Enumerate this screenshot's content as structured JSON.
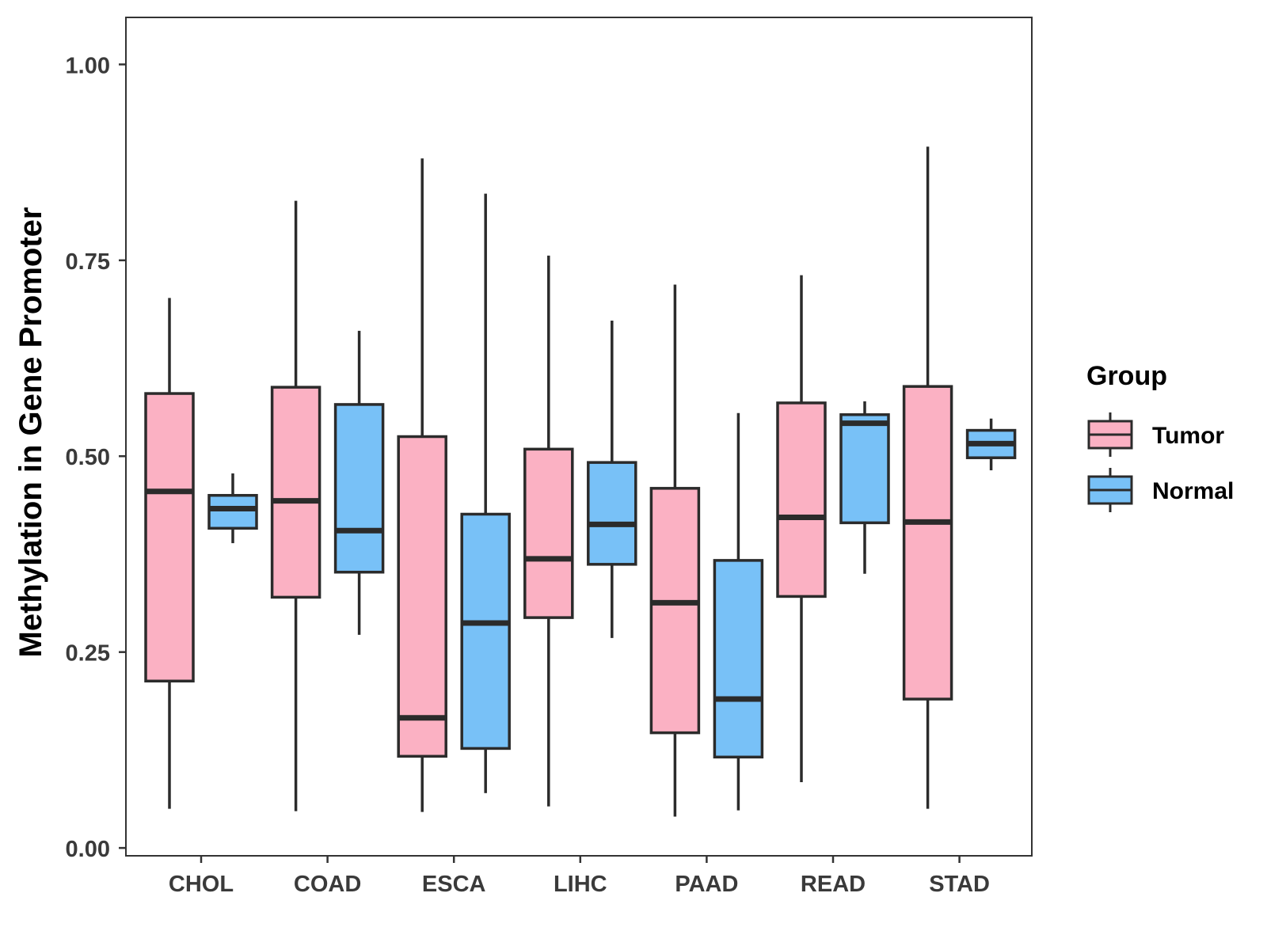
{
  "chart_data": {
    "type": "boxplot",
    "title": "",
    "xlabel": "",
    "ylabel": "Methylation in Gene Promoter",
    "ylim": [
      -0.01,
      1.06
    ],
    "yticks": [
      0.0,
      0.25,
      0.5,
      0.75,
      1.0
    ],
    "ytick_labels": [
      "0.00",
      "0.25",
      "0.50",
      "0.75",
      "1.00"
    ],
    "categories": [
      "CHOL",
      "COAD",
      "ESCA",
      "LIHC",
      "PAAD",
      "READ",
      "STAD"
    ],
    "legend": {
      "title": "Group",
      "position": "right",
      "entries": [
        {
          "label": "Tumor",
          "color": "#fbb1c3"
        },
        {
          "label": "Normal",
          "color": "#78c1f7"
        }
      ]
    },
    "series": [
      {
        "name": "Tumor",
        "color": "#fbb1c3",
        "boxes": [
          {
            "category": "CHOL",
            "min": 0.05,
            "q1": 0.213,
            "median": 0.455,
            "q3": 0.58,
            "max": 0.702
          },
          {
            "category": "COAD",
            "min": 0.047,
            "q1": 0.32,
            "median": 0.443,
            "q3": 0.588,
            "max": 0.826
          },
          {
            "category": "ESCA",
            "min": 0.046,
            "q1": 0.117,
            "median": 0.166,
            "q3": 0.525,
            "max": 0.88
          },
          {
            "category": "LIHC",
            "min": 0.053,
            "q1": 0.294,
            "median": 0.369,
            "q3": 0.509,
            "max": 0.756
          },
          {
            "category": "PAAD",
            "min": 0.04,
            "q1": 0.147,
            "median": 0.313,
            "q3": 0.459,
            "max": 0.719
          },
          {
            "category": "READ",
            "min": 0.084,
            "q1": 0.321,
            "median": 0.422,
            "q3": 0.568,
            "max": 0.731
          },
          {
            "category": "STAD",
            "min": 0.05,
            "q1": 0.19,
            "median": 0.416,
            "q3": 0.589,
            "max": 0.895
          }
        ]
      },
      {
        "name": "Normal",
        "color": "#78c1f7",
        "boxes": [
          {
            "category": "CHOL",
            "min": 0.389,
            "q1": 0.408,
            "median": 0.433,
            "q3": 0.45,
            "max": 0.478
          },
          {
            "category": "COAD",
            "min": 0.272,
            "q1": 0.352,
            "median": 0.405,
            "q3": 0.566,
            "max": 0.66
          },
          {
            "category": "ESCA",
            "min": 0.07,
            "q1": 0.127,
            "median": 0.287,
            "q3": 0.426,
            "max": 0.835
          },
          {
            "category": "LIHC",
            "min": 0.268,
            "q1": 0.362,
            "median": 0.413,
            "q3": 0.492,
            "max": 0.673
          },
          {
            "category": "PAAD",
            "min": 0.048,
            "q1": 0.116,
            "median": 0.19,
            "q3": 0.367,
            "max": 0.555
          },
          {
            "category": "READ",
            "min": 0.35,
            "q1": 0.415,
            "median": 0.542,
            "q3": 0.553,
            "max": 0.57
          },
          {
            "category": "STAD",
            "min": 0.482,
            "q1": 0.498,
            "median": 0.516,
            "q3": 0.533,
            "max": 0.548
          }
        ]
      }
    ],
    "colors": {
      "outline": "#2b2b2b",
      "panel_border": "#333333",
      "axis_text": "#3a3a3a"
    }
  }
}
